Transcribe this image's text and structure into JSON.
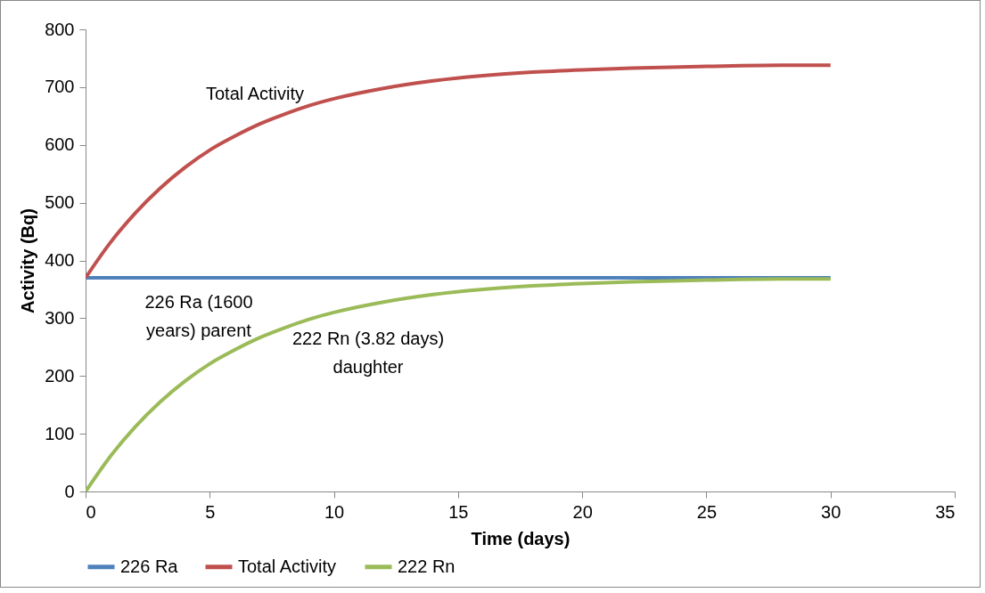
{
  "chart_data": {
    "type": "line",
    "xlabel": "Time (days)",
    "ylabel": "Activity (Bq)",
    "x": [
      0,
      1,
      2,
      3,
      4,
      5,
      6,
      7,
      8,
      9,
      10,
      12,
      14,
      16,
      18,
      20,
      22,
      25,
      28,
      30
    ],
    "series": [
      {
        "name": "226 Ra",
        "color": "#4f81bd",
        "values": [
          370,
          370,
          370,
          370,
          370,
          370,
          370,
          370,
          370,
          370,
          370,
          370,
          370,
          370,
          370,
          370,
          370,
          370,
          370,
          370
        ]
      },
      {
        "name": "Total Activity",
        "color": "#c0504d",
        "values": [
          370,
          431,
          482,
          525,
          561,
          591,
          615,
          636,
          653,
          668,
          680,
          698,
          711,
          720,
          726,
          730,
          733,
          736,
          738,
          738
        ]
      },
      {
        "name": "222 Rn",
        "color": "#9bbb59",
        "values": [
          0,
          61,
          112,
          155,
          191,
          221,
          245,
          266,
          283,
          298,
          310,
          328,
          341,
          350,
          356,
          360,
          363,
          366,
          368,
          368
        ]
      }
    ],
    "xlim": [
      0,
      35
    ],
    "xticks": [
      0,
      5,
      10,
      15,
      20,
      25,
      30,
      35
    ],
    "ylim": [
      0,
      800
    ],
    "yticks": [
      0,
      100,
      200,
      300,
      400,
      500,
      600,
      700,
      800
    ],
    "annotations": [
      "Total Activity",
      "226 Ra (1600\nyears) parent",
      "222 Rn (3.82 days)\ndaughter"
    ],
    "legend": "bottom"
  }
}
